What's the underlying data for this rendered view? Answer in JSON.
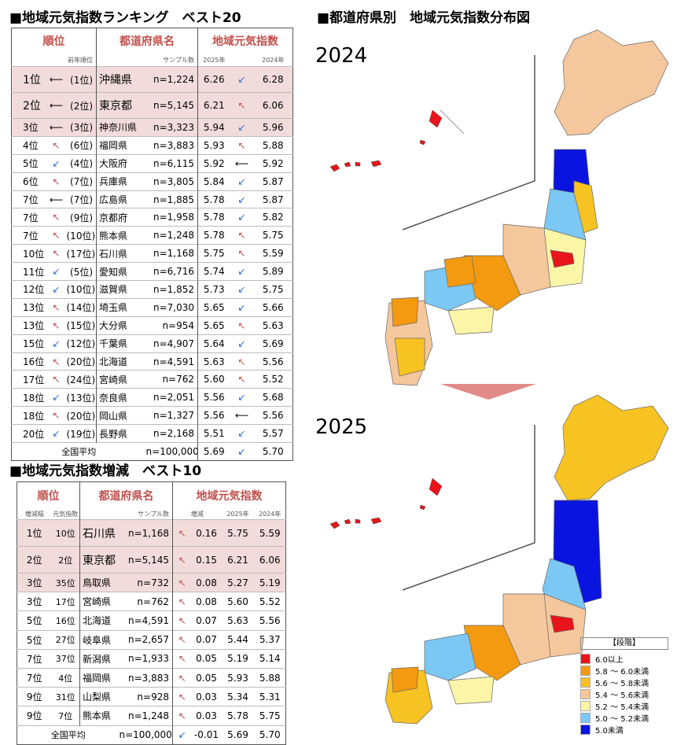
{
  "ranking_title": "■地域元気指数ランキング　ベスト20",
  "increase_title": "■地域元気指数増減　ベスト10",
  "map_title": "■都道府県別　地域元気指数分布図",
  "ranking_table": {
    "headers": {
      "rank": "順位",
      "pref": "都道府県名",
      "index": "地域元気指数"
    },
    "subheaders": {
      "prev": "前年順位",
      "sample": "サンプル数",
      "y2025": "2025年",
      "y2024": "2024年"
    },
    "rows": [
      {
        "rank": "1位",
        "trend": "same",
        "prev": "(1位)",
        "pref": "沖縄県",
        "n": "n=1,224",
        "v2025": "6.26",
        "vtrend": "down",
        "v2024": "6.28"
      },
      {
        "rank": "2位",
        "trend": "same",
        "prev": "(2位)",
        "pref": "東京都",
        "n": "n=5,145",
        "v2025": "6.21",
        "vtrend": "up",
        "v2024": "6.06"
      },
      {
        "rank": "3位",
        "trend": "same",
        "prev": "(3位)",
        "pref": "神奈川県",
        "n": "n=3,323",
        "v2025": "5.94",
        "vtrend": "down",
        "v2024": "5.96"
      },
      {
        "rank": "4位",
        "trend": "up",
        "prev": "(6位)",
        "pref": "福岡県",
        "n": "n=3,883",
        "v2025": "5.93",
        "vtrend": "up",
        "v2024": "5.88"
      },
      {
        "rank": "5位",
        "trend": "down",
        "prev": "(4位)",
        "pref": "大阪府",
        "n": "n=6,115",
        "v2025": "5.92",
        "vtrend": "same",
        "v2024": "5.92"
      },
      {
        "rank": "6位",
        "trend": "up",
        "prev": "(7位)",
        "pref": "兵庫県",
        "n": "n=3,805",
        "v2025": "5.84",
        "vtrend": "down",
        "v2024": "5.87"
      },
      {
        "rank": "7位",
        "trend": "same",
        "prev": "(7位)",
        "pref": "広島県",
        "n": "n=1,885",
        "v2025": "5.78",
        "vtrend": "down",
        "v2024": "5.87"
      },
      {
        "rank": "7位",
        "trend": "up",
        "prev": "(9位)",
        "pref": "京都府",
        "n": "n=1,958",
        "v2025": "5.78",
        "vtrend": "down",
        "v2024": "5.82"
      },
      {
        "rank": "7位",
        "trend": "up",
        "prev": "(10位)",
        "pref": "熊本県",
        "n": "n=1,248",
        "v2025": "5.78",
        "vtrend": "up",
        "v2024": "5.75"
      },
      {
        "rank": "10位",
        "trend": "up",
        "prev": "(17位)",
        "pref": "石川県",
        "n": "n=1,168",
        "v2025": "5.75",
        "vtrend": "up",
        "v2024": "5.59"
      },
      {
        "rank": "11位",
        "trend": "down",
        "prev": "(5位)",
        "pref": "愛知県",
        "n": "n=6,716",
        "v2025": "5.74",
        "vtrend": "down",
        "v2024": "5.89"
      },
      {
        "rank": "12位",
        "trend": "down",
        "prev": "(10位)",
        "pref": "滋賀県",
        "n": "n=1,852",
        "v2025": "5.73",
        "vtrend": "down",
        "v2024": "5.75"
      },
      {
        "rank": "13位",
        "trend": "up",
        "prev": "(14位)",
        "pref": "埼玉県",
        "n": "n=7,030",
        "v2025": "5.65",
        "vtrend": "down",
        "v2024": "5.66"
      },
      {
        "rank": "13位",
        "trend": "up",
        "prev": "(15位)",
        "pref": "大分県",
        "n": "n=954",
        "v2025": "5.65",
        "vtrend": "up",
        "v2024": "5.63"
      },
      {
        "rank": "15位",
        "trend": "down",
        "prev": "(12位)",
        "pref": "千葉県",
        "n": "n=4,907",
        "v2025": "5.64",
        "vtrend": "down",
        "v2024": "5.69"
      },
      {
        "rank": "16位",
        "trend": "up",
        "prev": "(20位)",
        "pref": "北海道",
        "n": "n=4,591",
        "v2025": "5.63",
        "vtrend": "up",
        "v2024": "5.56"
      },
      {
        "rank": "17位",
        "trend": "up",
        "prev": "(24位)",
        "pref": "宮崎県",
        "n": "n=762",
        "v2025": "5.60",
        "vtrend": "up",
        "v2024": "5.52"
      },
      {
        "rank": "18位",
        "trend": "down",
        "prev": "(13位)",
        "pref": "奈良県",
        "n": "n=2,051",
        "v2025": "5.56",
        "vtrend": "down",
        "v2024": "5.68"
      },
      {
        "rank": "18位",
        "trend": "up",
        "prev": "(20位)",
        "pref": "岡山県",
        "n": "n=1,327",
        "v2025": "5.56",
        "vtrend": "same",
        "v2024": "5.56"
      },
      {
        "rank": "20位",
        "trend": "down",
        "prev": "(19位)",
        "pref": "長野県",
        "n": "n=2,168",
        "v2025": "5.51",
        "vtrend": "down",
        "v2024": "5.57"
      }
    ],
    "avg": {
      "label": "全国平均",
      "n": "n=100,000",
      "v2025": "5.69",
      "vtrend": "down",
      "v2024": "5.70"
    }
  },
  "increase_table": {
    "headers": {
      "rank": "順位",
      "pref": "都道府県名",
      "index": "地域元気指数"
    },
    "subheaders": {
      "inc_rank": "増減幅",
      "overall": "元気指数",
      "sample": "サンプル数",
      "change": "増減",
      "y2025": "2025年",
      "y2024": "2024年"
    },
    "rows": [
      {
        "rank": "1位",
        "overall": "10位",
        "pref": "石川県",
        "n": "n=1,168",
        "trend": "up",
        "change": "0.16",
        "v2025": "5.75",
        "v2024": "5.59"
      },
      {
        "rank": "2位",
        "overall": "2位",
        "pref": "東京都",
        "n": "n=5,145",
        "trend": "up",
        "change": "0.15",
        "v2025": "6.21",
        "v2024": "6.06"
      },
      {
        "rank": "3位",
        "overall": "35位",
        "pref": "鳥取県",
        "n": "n=732",
        "trend": "up",
        "change": "0.08",
        "v2025": "5.27",
        "v2024": "5.19"
      },
      {
        "rank": "3位",
        "overall": "17位",
        "pref": "宮崎県",
        "n": "n=762",
        "trend": "up",
        "change": "0.08",
        "v2025": "5.60",
        "v2024": "5.52"
      },
      {
        "rank": "5位",
        "overall": "16位",
        "pref": "北海道",
        "n": "n=4,591",
        "trend": "up",
        "change": "0.07",
        "v2025": "5.63",
        "v2024": "5.56"
      },
      {
        "rank": "5位",
        "overall": "27位",
        "pref": "岐阜県",
        "n": "n=2,657",
        "trend": "up",
        "change": "0.07",
        "v2025": "5.44",
        "v2024": "5.37"
      },
      {
        "rank": "7位",
        "overall": "37位",
        "pref": "新潟県",
        "n": "n=1,933",
        "trend": "up",
        "change": "0.05",
        "v2025": "5.19",
        "v2024": "5.14"
      },
      {
        "rank": "7位",
        "overall": "4位",
        "pref": "福岡県",
        "n": "n=3,883",
        "trend": "up",
        "change": "0.05",
        "v2025": "5.93",
        "v2024": "5.88"
      },
      {
        "rank": "9位",
        "overall": "31位",
        "pref": "山梨県",
        "n": "n=928",
        "trend": "up",
        "change": "0.03",
        "v2025": "5.34",
        "v2024": "5.31"
      },
      {
        "rank": "9位",
        "overall": "7位",
        "pref": "熊本県",
        "n": "n=1,248",
        "trend": "up",
        "change": "0.03",
        "v2025": "5.78",
        "v2024": "5.75"
      }
    ],
    "avg": {
      "label": "全国平均",
      "n": "n=100,000",
      "trend": "down",
      "change": "-0.01",
      "v2025": "5.69",
      "v2024": "5.70"
    }
  },
  "maps": [
    {
      "year": "2024"
    },
    {
      "year": "2025"
    }
  ],
  "legend": {
    "title": "【段階】",
    "items": [
      {
        "label": "6.0以上",
        "color": "#e8141a"
      },
      {
        "label": "5.8 ～ 6.0未満",
        "color": "#f39a10"
      },
      {
        "label": "5.6 ～ 5.8未満",
        "color": "#f7c322"
      },
      {
        "label": "5.4 ～ 5.6未満",
        "color": "#f5c79c"
      },
      {
        "label": "5.2 ～ 5.4未満",
        "color": "#fbf5a8"
      },
      {
        "label": "5.0 ～ 5.2未満",
        "color": "#7cc8f5"
      },
      {
        "label": "5.0未満",
        "color": "#0a14e0"
      }
    ]
  },
  "arrows": {
    "up": "↖",
    "down": "↙",
    "same": "⟵"
  },
  "chart_data": {
    "type": "table",
    "title": "地域元気指数ランキング　ベスト20",
    "columns": [
      "順位",
      "前年順位",
      "都道府県名",
      "サンプル数",
      "2025年",
      "2024年"
    ],
    "series": [
      {
        "name": "2025年"
      },
      {
        "name": "2024年"
      }
    ]
  }
}
